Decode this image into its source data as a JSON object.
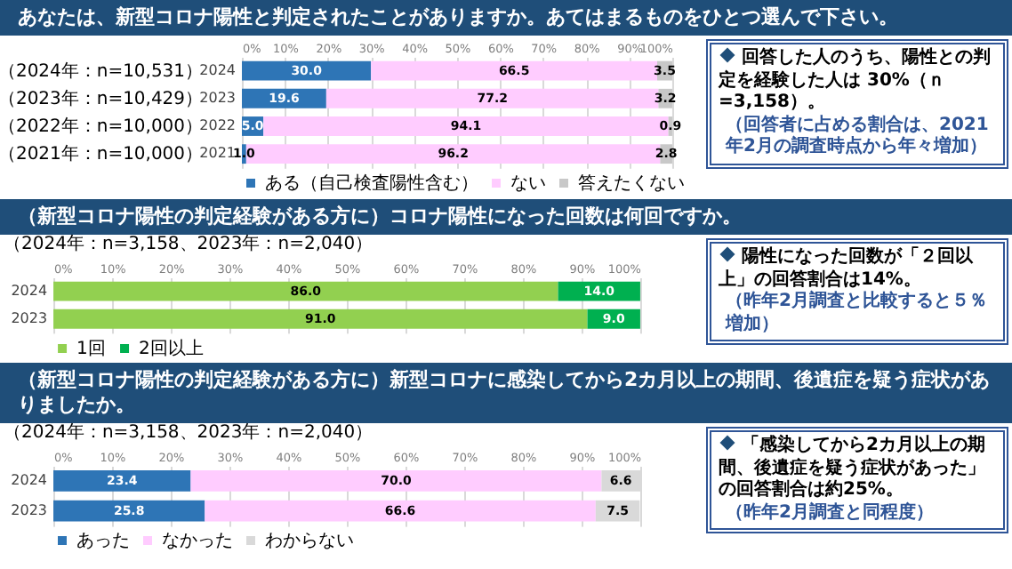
{
  "chart_data": [
    {
      "type": "bar",
      "orientation": "horizontal",
      "stacked": true,
      "title": "あなたは、新型コロナ陽性と判定されたことがありますか。あてはまるものをひとつ選んで下さい。",
      "categories": [
        "2024",
        "2023",
        "2022",
        "2021"
      ],
      "series": [
        {
          "name": "ある（自己検査陽性含む）",
          "color": "#2e75b6",
          "values": [
            30.0,
            19.6,
            5.0,
            1.0
          ],
          "value_labels": [
            "30.0",
            "19.6",
            "5.0",
            "1.0"
          ]
        },
        {
          "name": "ない",
          "color": "#ffccff",
          "values": [
            66.5,
            77.2,
            94.1,
            96.2
          ],
          "value_labels": [
            "66.5",
            "77.2",
            "94.1",
            "96.2"
          ]
        },
        {
          "name": "答えたくない",
          "color": "#c8c8c8",
          "values": [
            3.5,
            3.2,
            0.9,
            2.8
          ],
          "value_labels": [
            "3.5",
            "3.2",
            "0.9",
            "2.8"
          ]
        }
      ],
      "xlim": [
        0,
        100
      ],
      "xticks": [
        {
          "value": 0,
          "label": "0%"
        },
        {
          "value": 10,
          "label": "10%"
        },
        {
          "value": 20,
          "label": "20%"
        },
        {
          "value": 30,
          "label": "30%"
        },
        {
          "value": 40,
          "label": "40%"
        },
        {
          "value": 50,
          "label": "50%"
        },
        {
          "value": 60,
          "label": "60%"
        },
        {
          "value": 70,
          "label": "70%"
        },
        {
          "value": 80,
          "label": "80%"
        },
        {
          "value": 90,
          "label": "90%"
        },
        {
          "value": 100,
          "label": "100%"
        }
      ],
      "grid": "x",
      "legend": "bottom",
      "annotations": [
        "（2024年：n=10,531）",
        "（2023年：n=10,429）",
        "（2022年：n=10,000）",
        "（2021年：n=10,000）",
        "回答した人のうち、陽性との判定を経験した人は 30%（ｎ=3,158）。",
        "（回答者に占める割合は、2021年2月の調査時点から年々増加）"
      ]
    },
    {
      "type": "bar",
      "orientation": "horizontal",
      "stacked": true,
      "title": "（新型コロナ陽性の判定経験がある方に）コロナ陽性になった回数は何回ですか。",
      "subtitle": "（2024年：n=3,158、2023年：n=2,040）",
      "categories": [
        "2024",
        "2023"
      ],
      "series": [
        {
          "name": "1回",
          "color": "#92d050",
          "values": [
            86.0,
            91.0
          ],
          "value_labels": [
            "86.0",
            "91.0"
          ]
        },
        {
          "name": "2回以上",
          "color": "#00b050",
          "values": [
            14.0,
            9.0
          ],
          "value_labels": [
            "14.0",
            "9.0"
          ]
        }
      ],
      "xlim": [
        0,
        100
      ],
      "xticks": [
        {
          "value": 0,
          "label": "0%"
        },
        {
          "value": 10,
          "label": "10%"
        },
        {
          "value": 20,
          "label": "20%"
        },
        {
          "value": 30,
          "label": "30%"
        },
        {
          "value": 40,
          "label": "40%"
        },
        {
          "value": 50,
          "label": "50%"
        },
        {
          "value": 60,
          "label": "60%"
        },
        {
          "value": 70,
          "label": "70%"
        },
        {
          "value": 80,
          "label": "80%"
        },
        {
          "value": 90,
          "label": "90%"
        },
        {
          "value": 100,
          "label": "100%"
        }
      ],
      "grid": "x",
      "legend": "bottom",
      "annotations": [
        "陽性になった回数が「２回以上」の回答割合は14%。",
        "（昨年2月調査と比較すると５％増加）"
      ]
    },
    {
      "type": "bar",
      "orientation": "horizontal",
      "stacked": true,
      "title": "（新型コロナ陽性の判定経験がある方に）新型コロナに感染してから2カ月以上の期間、後遺症を疑う症状がありましたか。",
      "subtitle": "（2024年：n=3,158、2023年：n=2,040）",
      "categories": [
        "2024",
        "2023"
      ],
      "series": [
        {
          "name": "あった",
          "color": "#2e75b6",
          "values": [
            23.4,
            25.8
          ],
          "value_labels": [
            "23.4",
            "25.8"
          ]
        },
        {
          "name": "なかった",
          "color": "#ffccff",
          "values": [
            70.0,
            66.6
          ],
          "value_labels": [
            "70.0",
            "66.6"
          ]
        },
        {
          "name": "わからない",
          "color": "#d9d9d9",
          "values": [
            6.6,
            7.5
          ],
          "value_labels": [
            "6.6",
            "7.5"
          ]
        }
      ],
      "xlim": [
        0,
        100
      ],
      "xticks": [
        {
          "value": 0,
          "label": "0%"
        },
        {
          "value": 10,
          "label": "10%"
        },
        {
          "value": 20,
          "label": "20%"
        },
        {
          "value": 30,
          "label": "30%"
        },
        {
          "value": 40,
          "label": "40%"
        },
        {
          "value": 50,
          "label": "50%"
        },
        {
          "value": 60,
          "label": "60%"
        },
        {
          "value": 70,
          "label": "70%"
        },
        {
          "value": 80,
          "label": "80%"
        },
        {
          "value": 90,
          "label": "90%"
        },
        {
          "value": 100,
          "label": "100%"
        }
      ],
      "grid": "x",
      "legend": "bottom",
      "annotations": [
        "「感染してから2カ月以上の期間、後遺症を疑う症状があった」の回答割合は約25%。",
        "（昨年2月調査と同程度）"
      ]
    }
  ]
}
